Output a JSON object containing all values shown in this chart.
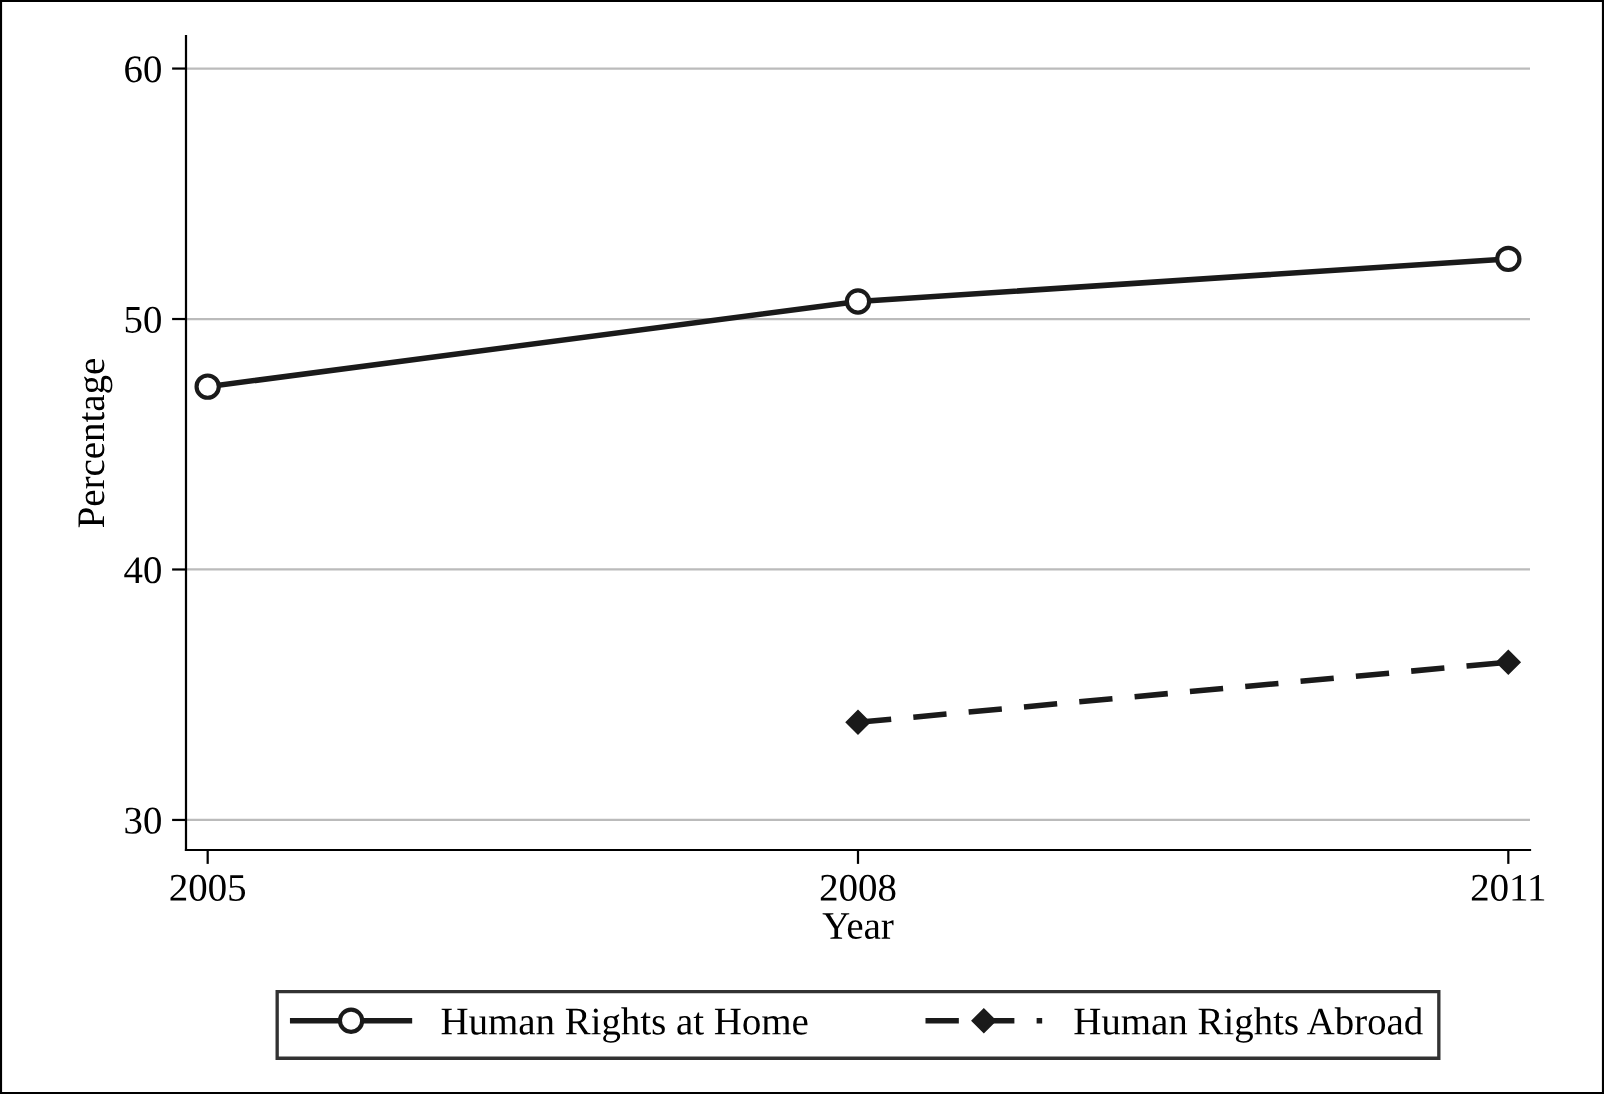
{
  "chart_data": {
    "type": "line",
    "xlabel": "Year",
    "ylabel": "Percentage",
    "x": [
      2005,
      2008,
      2011
    ],
    "series": [
      {
        "name": "Human Rights at Home",
        "color": "#1a1a1a",
        "values": [
          47.3,
          50.7,
          52.4
        ],
        "marker": "circle",
        "line_style": "solid"
      },
      {
        "name": "Human Rights Abroad",
        "color": "#1a1a1a",
        "values": [
          null,
          33.9,
          36.3
        ],
        "marker": "diamond",
        "line_style": "dashed"
      }
    ],
    "xlim": [
      2004.9,
      2011.1
    ],
    "xticks": [
      2005,
      2008,
      2011
    ],
    "ylim": [
      28.8,
      61.3
    ],
    "yticks": [
      30,
      40,
      50,
      60
    ],
    "grid": "y",
    "legend": "bottom"
  }
}
